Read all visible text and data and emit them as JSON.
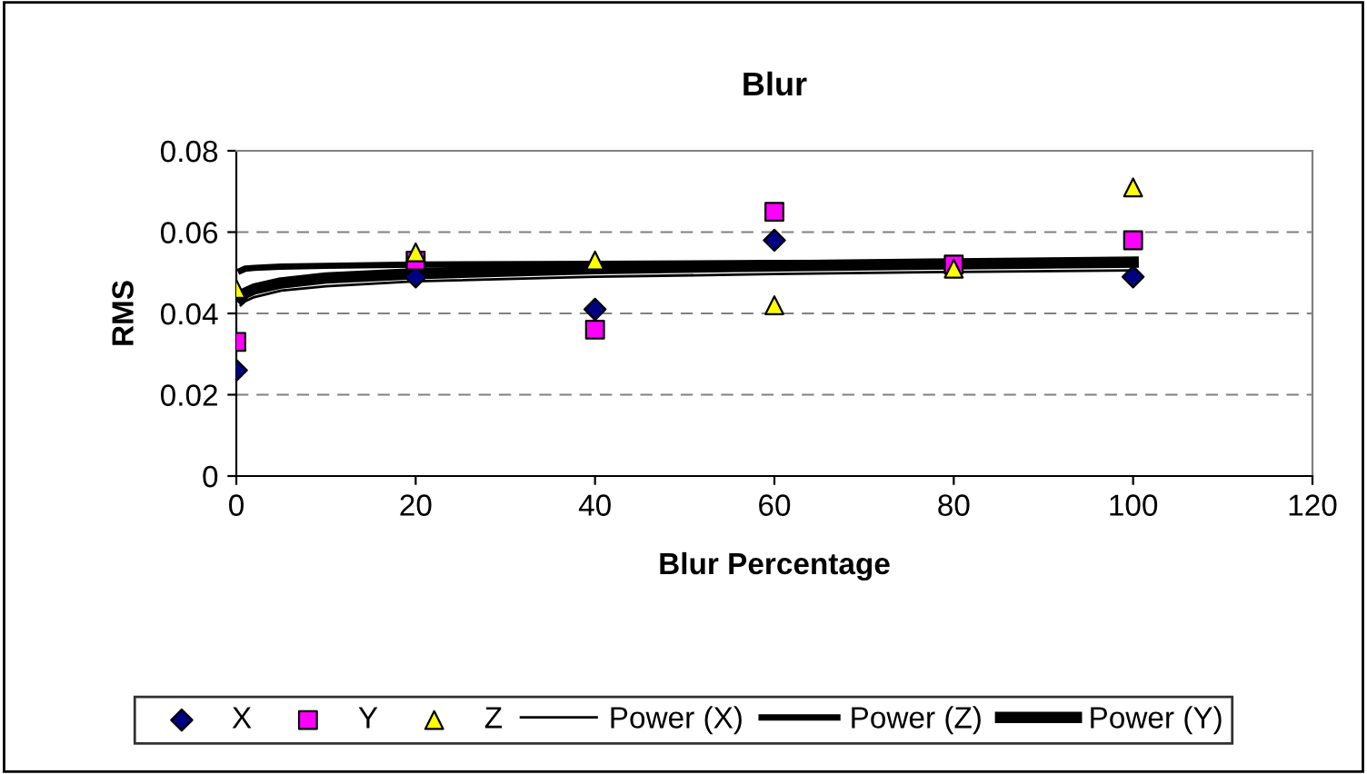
{
  "chart_data": {
    "type": "scatter",
    "title": "Blur",
    "xlabel": "Blur Percentage",
    "ylabel": "RMS",
    "xlim": [
      0,
      120
    ],
    "xticks": [
      0,
      20,
      40,
      60,
      80,
      100,
      120
    ],
    "ylim": [
      0,
      0.08
    ],
    "yticks": [
      0,
      0.02,
      0.04,
      0.06,
      0.08
    ],
    "grid": "y",
    "legend": "bottom",
    "series": [
      {
        "name": "X",
        "marker": "diamond",
        "color": "#000080",
        "x": [
          0,
          20,
          40,
          60,
          80,
          100
        ],
        "values": [
          0.026,
          0.049,
          0.041,
          0.058,
          null,
          0.049
        ]
      },
      {
        "name": "Y",
        "marker": "square",
        "color": "#ff00ff",
        "x": [
          0,
          20,
          40,
          60,
          80,
          100
        ],
        "values": [
          0.033,
          0.053,
          0.036,
          0.065,
          0.052,
          0.058
        ]
      },
      {
        "name": "Z",
        "marker": "triangle",
        "color": "#ffff00",
        "x": [
          0,
          20,
          40,
          60,
          80,
          100
        ],
        "values": [
          0.046,
          0.055,
          0.053,
          0.042,
          0.051,
          0.071
        ]
      },
      {
        "name": "Power (X)",
        "type": "line",
        "color": "#000000",
        "x": [
          0.5,
          1,
          2,
          5,
          10,
          20,
          40,
          60,
          80,
          100
        ],
        "values": [
          0.042,
          0.043,
          0.044,
          0.0456,
          0.0467,
          0.0479,
          0.049,
          0.0497,
          0.0502,
          0.0506
        ]
      },
      {
        "name": "Power (Z)",
        "type": "line",
        "color": "#000000",
        "x": [
          0.5,
          1,
          2,
          5,
          10,
          20,
          40,
          60,
          80,
          100
        ],
        "values": [
          0.0505,
          0.051,
          0.0512,
          0.0515,
          0.0517,
          0.052,
          0.0522,
          0.0524,
          0.0525,
          0.0526
        ]
      },
      {
        "name": "Power (Y)",
        "type": "line",
        "color": "#000000",
        "x": [
          0.5,
          1,
          2,
          5,
          10,
          20,
          40,
          60,
          80,
          100
        ],
        "values": [
          0.044,
          0.045,
          0.046,
          0.0475,
          0.0487,
          0.0498,
          0.051,
          0.0517,
          0.0522,
          0.0526
        ]
      }
    ]
  }
}
